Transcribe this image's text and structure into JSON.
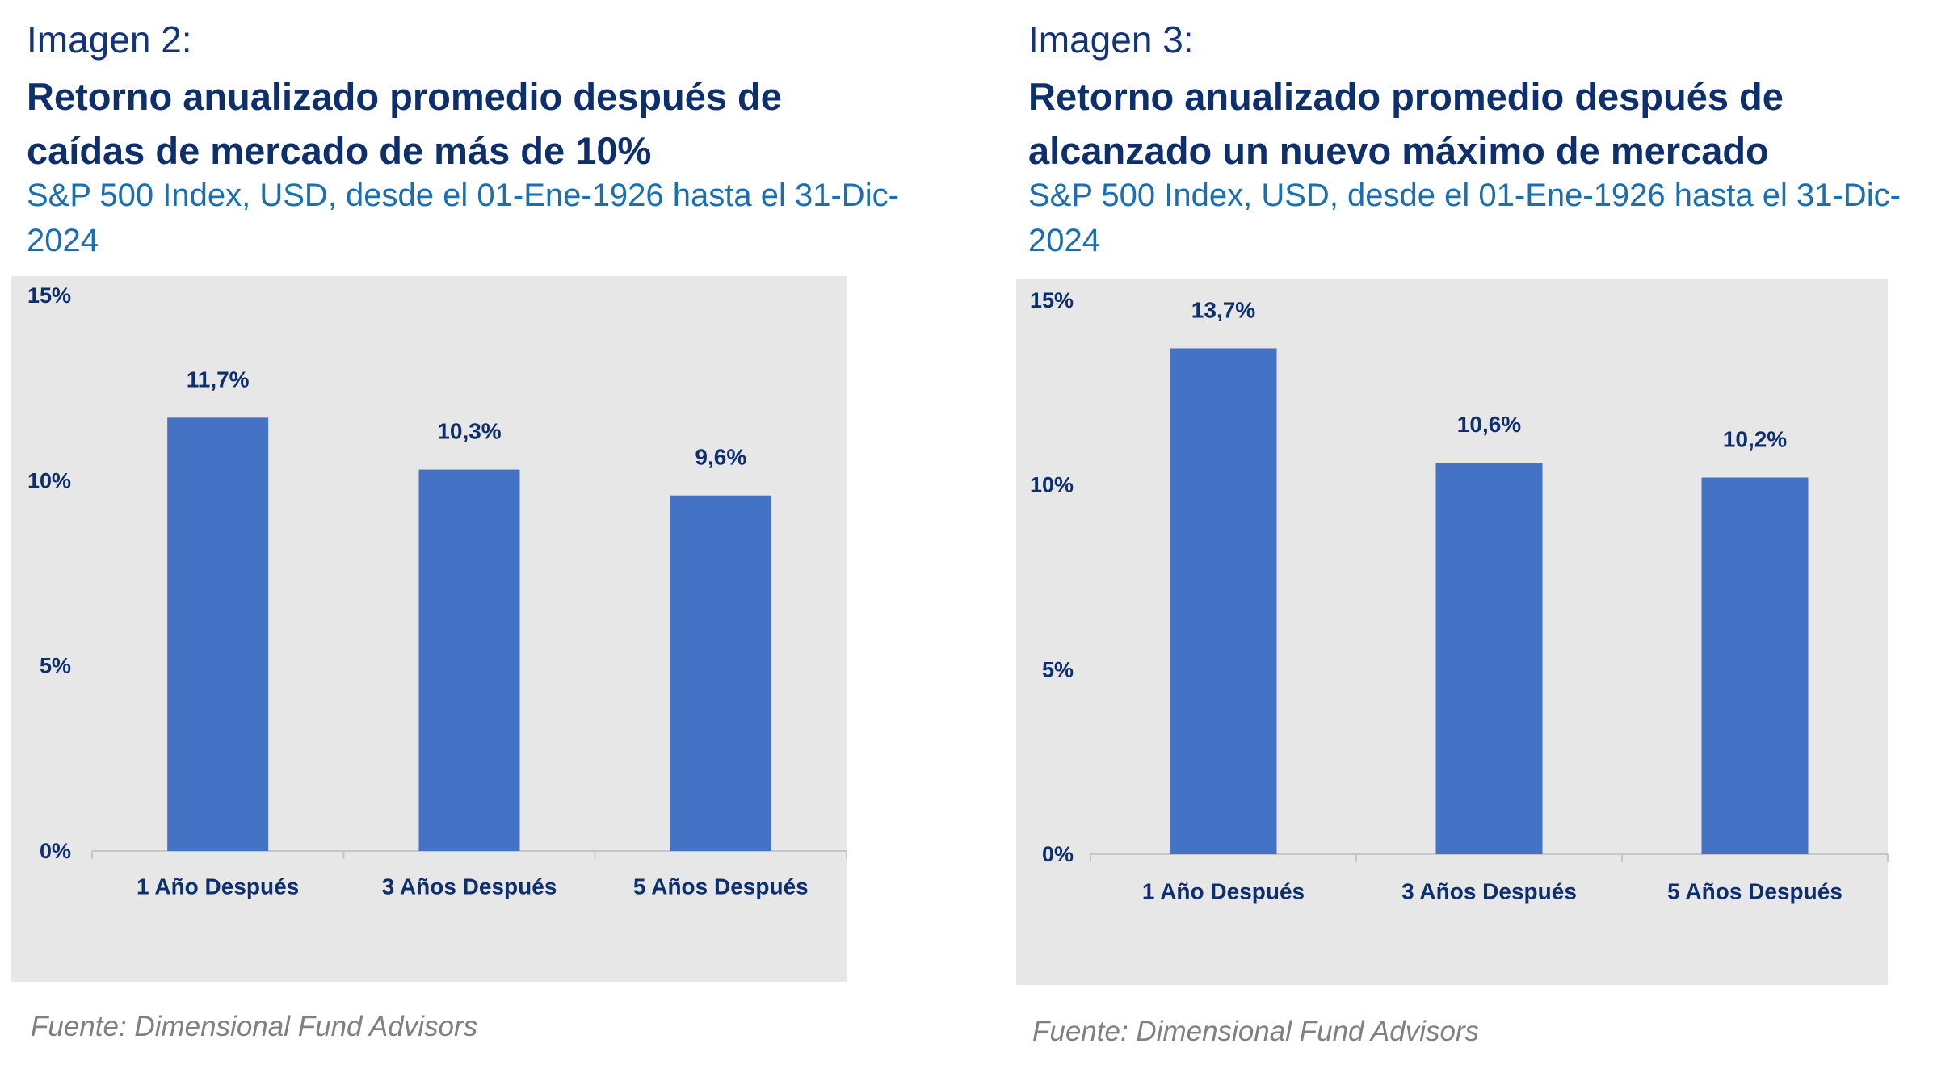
{
  "chart_data": [
    {
      "type": "bar",
      "label": "Imagen 2:",
      "title_lines": [
        "Retorno anualizado promedio después de",
        "caídas de mercado de  más de 10%"
      ],
      "subtitle": "S&P 500 Index, USD, desde el 01-Ene-1926 hasta el 31-Dic-2024",
      "categories": [
        "1 Año Después",
        "3 Años Después",
        "5 Años Después"
      ],
      "values": [
        11.7,
        10.3,
        9.6
      ],
      "value_labels": [
        "11,7%",
        "10,3%",
        "9,6%"
      ],
      "ylim": [
        0,
        15
      ],
      "yticks": [
        0,
        5,
        10,
        15
      ],
      "ytick_labels": [
        "0%",
        "5%",
        "10%",
        "15%"
      ],
      "bar_color": "#4472c4",
      "background": "#e7e7e7",
      "grid": false,
      "legend": "none",
      "source": "Fuente: Dimensional Fund Advisors"
    },
    {
      "type": "bar",
      "label": "Imagen 3:",
      "title_lines": [
        "Retorno anualizado promedio después de",
        "alcanzado un nuevo máximo de mercado"
      ],
      "subtitle": "S&P 500 Index, USD, desde el 01-Ene-1926 hasta el 31-Dic-2024",
      "categories": [
        "1 Año Después",
        "3 Años Después",
        "5 Años Después"
      ],
      "values": [
        13.7,
        10.6,
        10.2
      ],
      "value_labels": [
        "13,7%",
        "10,6%",
        "10,2%"
      ],
      "ylim": [
        0,
        15
      ],
      "yticks": [
        0,
        5,
        10,
        15
      ],
      "ytick_labels": [
        "0%",
        "5%",
        "10%",
        "15%"
      ],
      "bar_color": "#4472c4",
      "background": "#e7e7e7",
      "grid": false,
      "legend": "none",
      "source": "Fuente: Dimensional Fund Advisors"
    }
  ]
}
